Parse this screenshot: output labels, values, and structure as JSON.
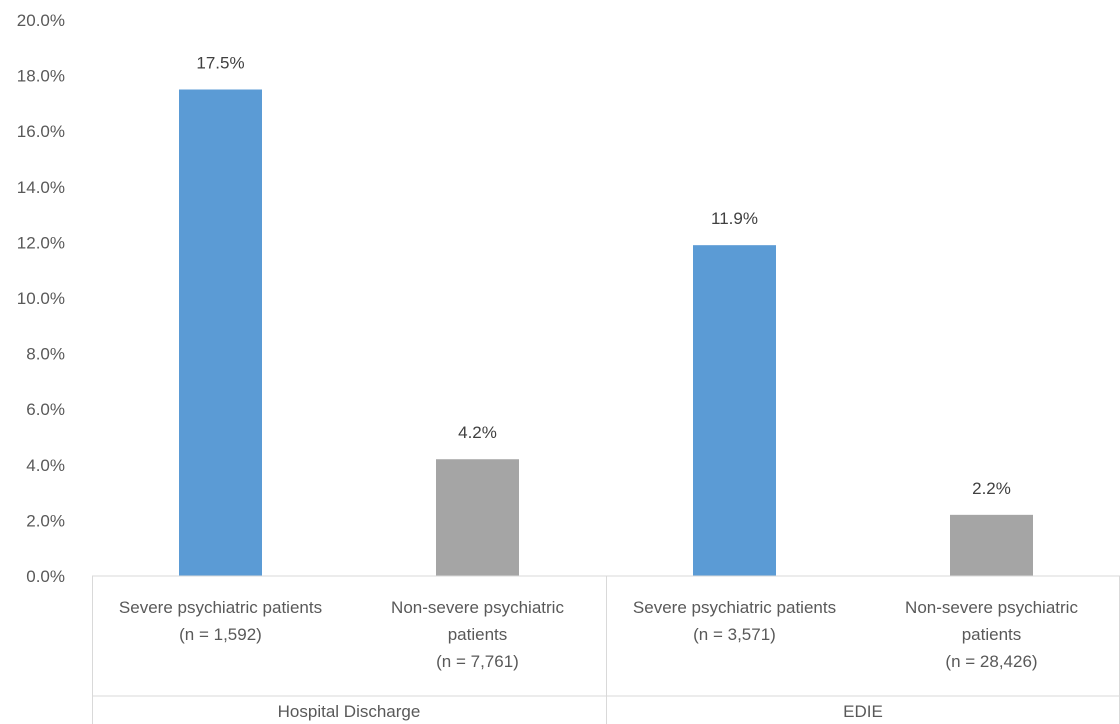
{
  "chart_data": {
    "type": "bar",
    "title": "",
    "xlabel": "",
    "ylabel": "",
    "ylim": [
      0,
      20
    ],
    "y_ticks": [
      "0.0%",
      "2.0%",
      "4.0%",
      "6.0%",
      "8.0%",
      "10.0%",
      "12.0%",
      "14.0%",
      "16.0%",
      "18.0%",
      "20.0%"
    ],
    "grid": false,
    "legend": "none",
    "groups": [
      {
        "label": "Hospital Discharge",
        "bars": [
          {
            "category_lines": [
              "Severe psychiatric patients",
              "(n = 1,592)"
            ],
            "value": 17.5,
            "label": "17.5%",
            "color": "#5B9BD5"
          },
          {
            "category_lines": [
              "Non-severe psychiatric",
              "patients",
              "(n = 7,761)"
            ],
            "value": 4.2,
            "label": "4.2%",
            "color": "#A5A5A5"
          }
        ]
      },
      {
        "label": "EDIE",
        "bars": [
          {
            "category_lines": [
              "Severe psychiatric patients",
              "(n = 3,571)"
            ],
            "value": 11.9,
            "label": "11.9%",
            "color": "#5B9BD5"
          },
          {
            "category_lines": [
              "Non-severe psychiatric",
              "patients",
              "(n = 28,426)"
            ],
            "value": 2.2,
            "label": "2.2%",
            "color": "#A5A5A5"
          }
        ]
      }
    ]
  }
}
